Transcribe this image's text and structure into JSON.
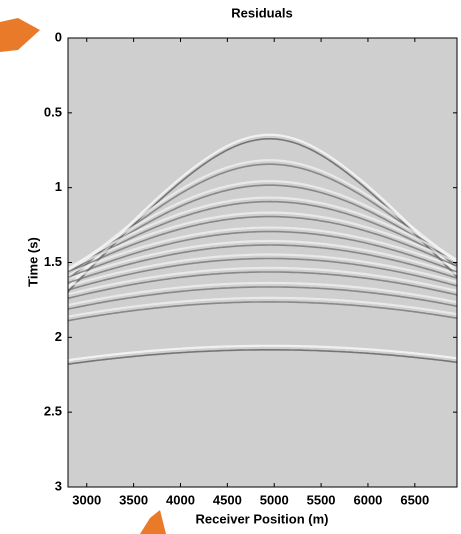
{
  "chart_data": {
    "type": "image",
    "title": "Residuals",
    "xlabel": "Receiver Position (m)",
    "ylabel": "Time (s)",
    "xlim": [
      2800,
      6950
    ],
    "ylim": [
      0,
      3
    ],
    "xticks": [
      3000,
      3500,
      4000,
      4500,
      5000,
      5500,
      6000,
      6500
    ],
    "yticks": [
      0,
      0.5,
      1,
      1.5,
      2,
      2.5,
      3
    ],
    "y_inverted": true,
    "background": "#cfcfcf"
  }
}
